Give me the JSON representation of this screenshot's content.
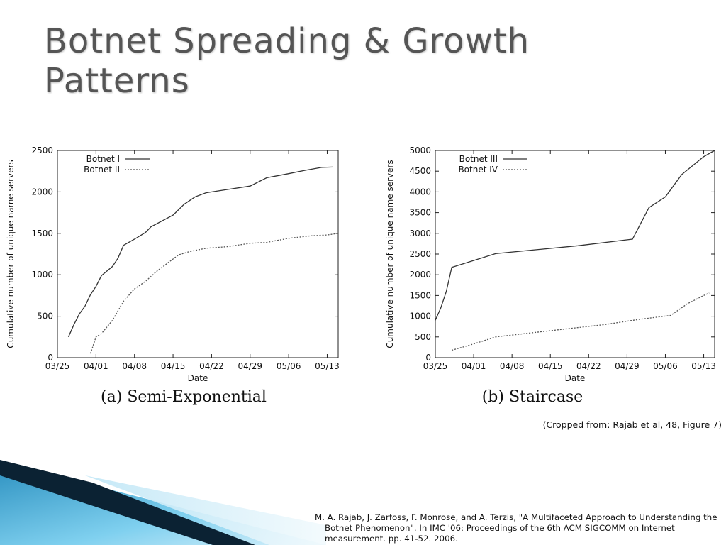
{
  "slide": {
    "title": "Botnet Spreading & Growth Patterns",
    "credit": "(Cropped from: Rajab et al, 48, Figure 7)",
    "reference": "M. A. Rajab, J. Zarfoss, F. Monrose, and A. Terzis, \"A Multifaceted Approach to Understanding the Botnet Phenomenon\". In IMC '06: Proceedings of the 6th ACM SIGCOMM on Internet measurement. pp. 41-52. 2006."
  },
  "colors": {
    "accent_dark": "#0b3a55",
    "accent_light": "#6fc3e6",
    "line": "#333333"
  },
  "chart_data": [
    {
      "type": "line",
      "caption": "(a) Semi-Exponential",
      "xlabel": "Date",
      "ylabel": "Cumulative number of unique name servers",
      "xlim": [
        "2006-03-25",
        "2006-05-15"
      ],
      "ylim": [
        0,
        2500
      ],
      "x_ticks": [
        {
          "date": "2006-03-25",
          "label": "03/25"
        },
        {
          "date": "2006-04-01",
          "label": "04/01"
        },
        {
          "date": "2006-04-08",
          "label": "04/08"
        },
        {
          "date": "2006-04-15",
          "label": "04/15"
        },
        {
          "date": "2006-04-22",
          "label": "04/22"
        },
        {
          "date": "2006-04-29",
          "label": "04/29"
        },
        {
          "date": "2006-05-06",
          "label": "05/06"
        },
        {
          "date": "2006-05-13",
          "label": "05/13"
        }
      ],
      "y_ticks": [
        0,
        500,
        1000,
        1500,
        2000,
        2500
      ],
      "legend_position": "top-left",
      "series": [
        {
          "name": "Botnet I",
          "style": "solid",
          "points": [
            [
              "2006-03-27",
              250
            ],
            [
              "2006-03-28",
              400
            ],
            [
              "2006-03-29",
              530
            ],
            [
              "2006-03-30",
              620
            ],
            [
              "2006-03-31",
              760
            ],
            [
              "2006-04-01",
              860
            ],
            [
              "2006-04-02",
              990
            ],
            [
              "2006-04-04",
              1100
            ],
            [
              "2006-04-05",
              1200
            ],
            [
              "2006-04-06",
              1355
            ],
            [
              "2006-04-08",
              1430
            ],
            [
              "2006-04-10",
              1510
            ],
            [
              "2006-04-11",
              1580
            ],
            [
              "2006-04-15",
              1720
            ],
            [
              "2006-04-17",
              1850
            ],
            [
              "2006-04-19",
              1940
            ],
            [
              "2006-04-21",
              1990
            ],
            [
              "2006-04-25",
              2030
            ],
            [
              "2006-04-29",
              2070
            ],
            [
              "2006-05-02",
              2170
            ],
            [
              "2006-05-06",
              2220
            ],
            [
              "2006-05-09",
              2260
            ],
            [
              "2006-05-12",
              2295
            ],
            [
              "2006-05-14",
              2300
            ]
          ]
        },
        {
          "name": "Botnet II",
          "style": "dotted",
          "points": [
            [
              "2006-03-31",
              50
            ],
            [
              "2006-04-01",
              250
            ],
            [
              "2006-04-02",
              290
            ],
            [
              "2006-04-04",
              450
            ],
            [
              "2006-04-06",
              680
            ],
            [
              "2006-04-08",
              830
            ],
            [
              "2006-04-10",
              920
            ],
            [
              "2006-04-12",
              1040
            ],
            [
              "2006-04-14",
              1140
            ],
            [
              "2006-04-16",
              1240
            ],
            [
              "2006-04-18",
              1280
            ],
            [
              "2006-04-21",
              1320
            ],
            [
              "2006-04-25",
              1340
            ],
            [
              "2006-04-29",
              1380
            ],
            [
              "2006-05-02",
              1390
            ],
            [
              "2006-05-06",
              1440
            ],
            [
              "2006-05-10",
              1470
            ],
            [
              "2006-05-13",
              1480
            ],
            [
              "2006-05-15",
              1500
            ]
          ]
        }
      ]
    },
    {
      "type": "line",
      "caption": "(b) Staircase",
      "xlabel": "Date",
      "ylabel": "Cumulative number of unique name servers",
      "xlim": [
        "2006-03-25",
        "2006-05-15"
      ],
      "ylim": [
        0,
        5000
      ],
      "x_ticks": [
        {
          "date": "2006-03-25",
          "label": "03/25"
        },
        {
          "date": "2006-04-01",
          "label": "04/01"
        },
        {
          "date": "2006-04-08",
          "label": "04/08"
        },
        {
          "date": "2006-04-15",
          "label": "04/15"
        },
        {
          "date": "2006-04-22",
          "label": "04/22"
        },
        {
          "date": "2006-04-29",
          "label": "04/29"
        },
        {
          "date": "2006-05-06",
          "label": "05/06"
        },
        {
          "date": "2006-05-13",
          "label": "05/13"
        }
      ],
      "y_ticks": [
        0,
        500,
        1000,
        1500,
        2000,
        2500,
        3000,
        3500,
        4000,
        4500,
        5000
      ],
      "legend_position": "top-left",
      "series": [
        {
          "name": "Botnet III",
          "style": "solid",
          "points": [
            [
              "2006-03-25",
              900
            ],
            [
              "2006-03-26",
              1200
            ],
            [
              "2006-03-27",
              1600
            ],
            [
              "2006-03-28",
              2180
            ],
            [
              "2006-04-05",
              2510
            ],
            [
              "2006-04-20",
              2700
            ],
            [
              "2006-04-30",
              2860
            ],
            [
              "2006-05-03",
              3620
            ],
            [
              "2006-05-06",
              3880
            ],
            [
              "2006-05-09",
              4420
            ],
            [
              "2006-05-13",
              4850
            ],
            [
              "2006-05-15",
              5000
            ]
          ]
        },
        {
          "name": "Botnet IV",
          "style": "dotted",
          "points": [
            [
              "2006-03-28",
              180
            ],
            [
              "2006-04-01",
              330
            ],
            [
              "2006-04-05",
              500
            ],
            [
              "2006-04-15",
              650
            ],
            [
              "2006-04-25",
              800
            ],
            [
              "2006-05-01",
              920
            ],
            [
              "2006-05-07",
              1020
            ],
            [
              "2006-05-10",
              1300
            ],
            [
              "2006-05-13",
              1500
            ],
            [
              "2006-05-14",
              1560
            ]
          ]
        }
      ]
    }
  ]
}
